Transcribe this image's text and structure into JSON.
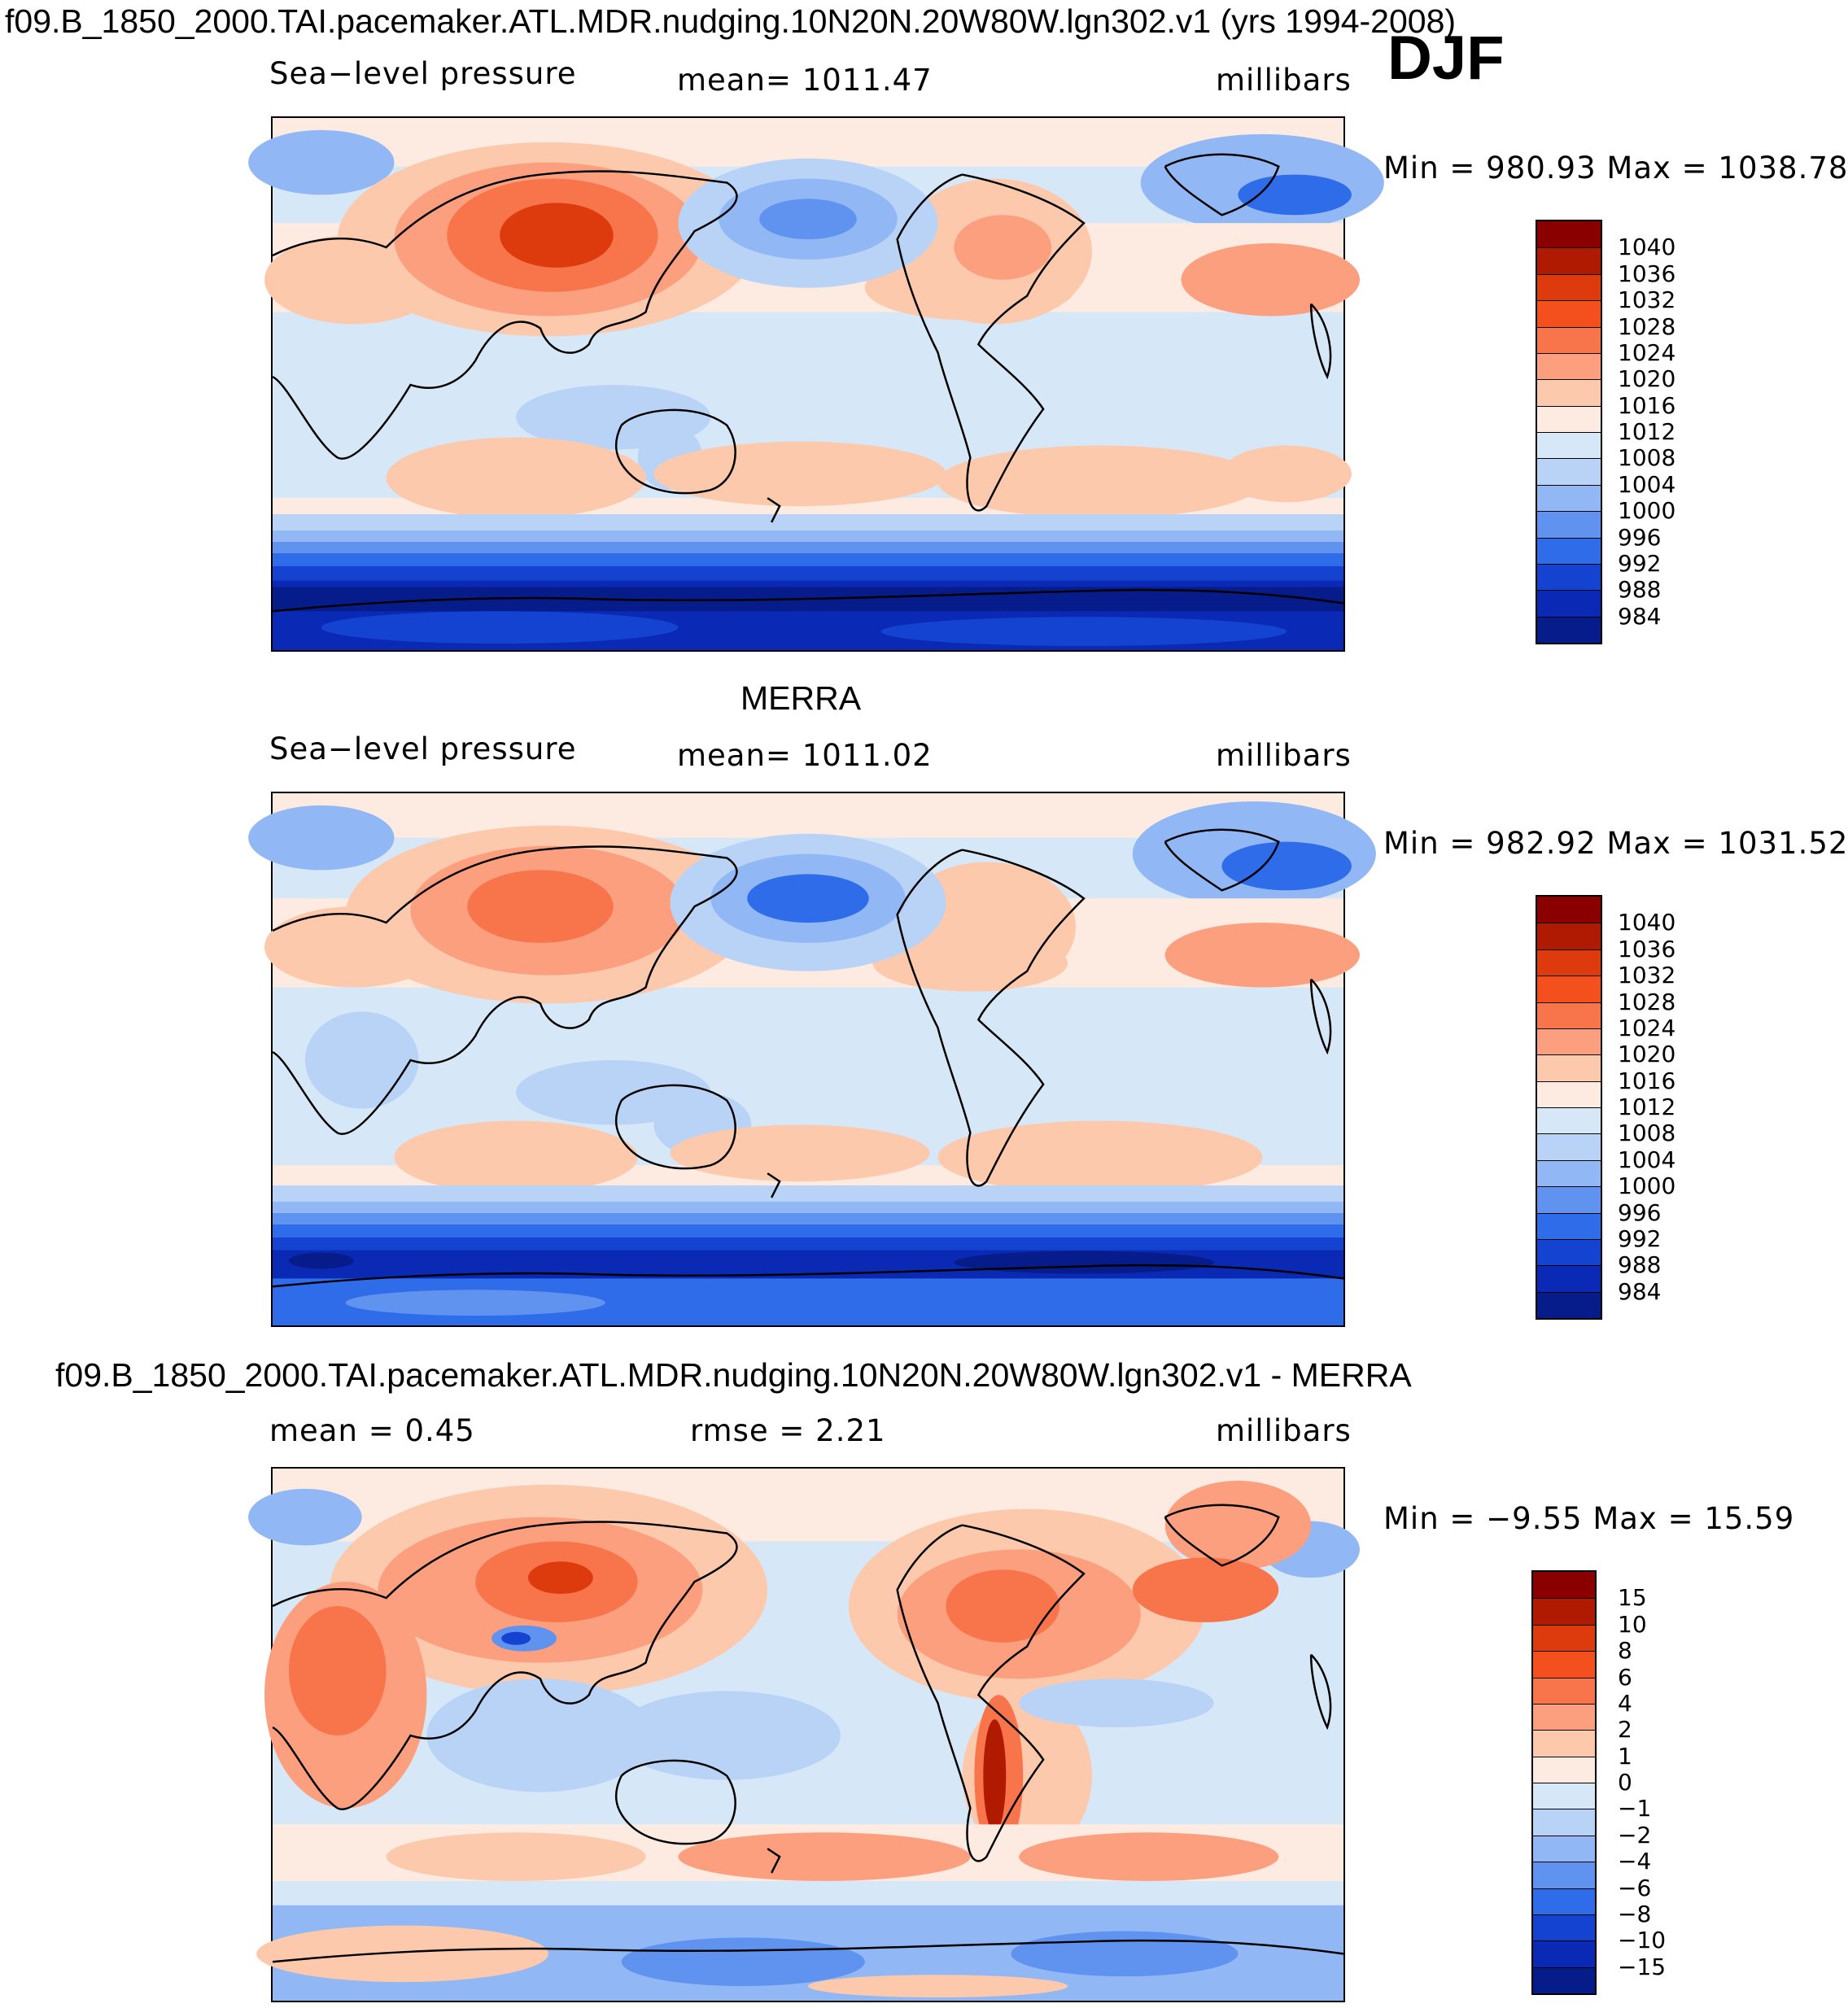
{
  "figure": {
    "title": "f09.B_1850_2000.TAI.pacemaker.ATL.MDR.nudging.10N20N.20W80W.lgn302.v1 (yrs 1994-2008)",
    "season": "DJF"
  },
  "panels": [
    {
      "id": "model",
      "heading": "",
      "left_label": "Sea−level pressure",
      "center_label": "mean=  1011.47",
      "units": "millibars",
      "min_max": "Min  =  980.93  Max  =  1038.78",
      "colorbar": {
        "labels": [
          "1040",
          "1036",
          "1032",
          "1028",
          "1024",
          "1020",
          "1016",
          "1012",
          "1008",
          "1004",
          "1000",
          "996",
          "992",
          "988",
          "984"
        ],
        "colors": [
          "#8a0000",
          "#b01a00",
          "#dd3a0e",
          "#f4501e",
          "#f8744a",
          "#fb9f7e",
          "#fdc9ac",
          "#fdeae0",
          "#d6e8f8",
          "#b8d3f6",
          "#91b8f4",
          "#5f93ef",
          "#2f6cea",
          "#1443d2",
          "#0a2ab6",
          "#061c8a"
        ]
      }
    },
    {
      "id": "obs",
      "heading": "MERRA",
      "left_label": "Sea−level pressure",
      "center_label": "mean=  1011.02",
      "units": "millibars",
      "min_max": "Min  =  982.92  Max  =  1031.52",
      "colorbar": {
        "labels": [
          "1040",
          "1036",
          "1032",
          "1028",
          "1024",
          "1020",
          "1016",
          "1012",
          "1008",
          "1004",
          "1000",
          "996",
          "992",
          "988",
          "984"
        ],
        "colors": [
          "#8a0000",
          "#b01a00",
          "#dd3a0e",
          "#f4501e",
          "#f8744a",
          "#fb9f7e",
          "#fdc9ac",
          "#fdeae0",
          "#d6e8f8",
          "#b8d3f6",
          "#91b8f4",
          "#5f93ef",
          "#2f6cea",
          "#1443d2",
          "#0a2ab6",
          "#061c8a"
        ]
      }
    },
    {
      "id": "diff",
      "heading": "f09.B_1850_2000.TAI.pacemaker.ATL.MDR.nudging.10N20N.20W80W.lgn302.v1 - MERRA",
      "left_label": "mean  =     0.45",
      "center_label": "rmse  =     2.21",
      "units": "millibars",
      "min_max": "Min  =    −9.55  Max  =    15.59",
      "colorbar": {
        "labels": [
          "15",
          "10",
          "8",
          "6",
          "4",
          "2",
          "1",
          "0",
          "−1",
          "−2",
          "−4",
          "−6",
          "−8",
          "−10",
          "−15"
        ],
        "colors": [
          "#8a0000",
          "#b01a00",
          "#dd3a0e",
          "#f4501e",
          "#f8744a",
          "#fb9f7e",
          "#fdc9ac",
          "#fdeae0",
          "#d6e8f8",
          "#b8d3f6",
          "#91b8f4",
          "#5f93ef",
          "#2f6cea",
          "#1443d2",
          "#0a2ab6",
          "#061c8a"
        ]
      }
    }
  ]
}
